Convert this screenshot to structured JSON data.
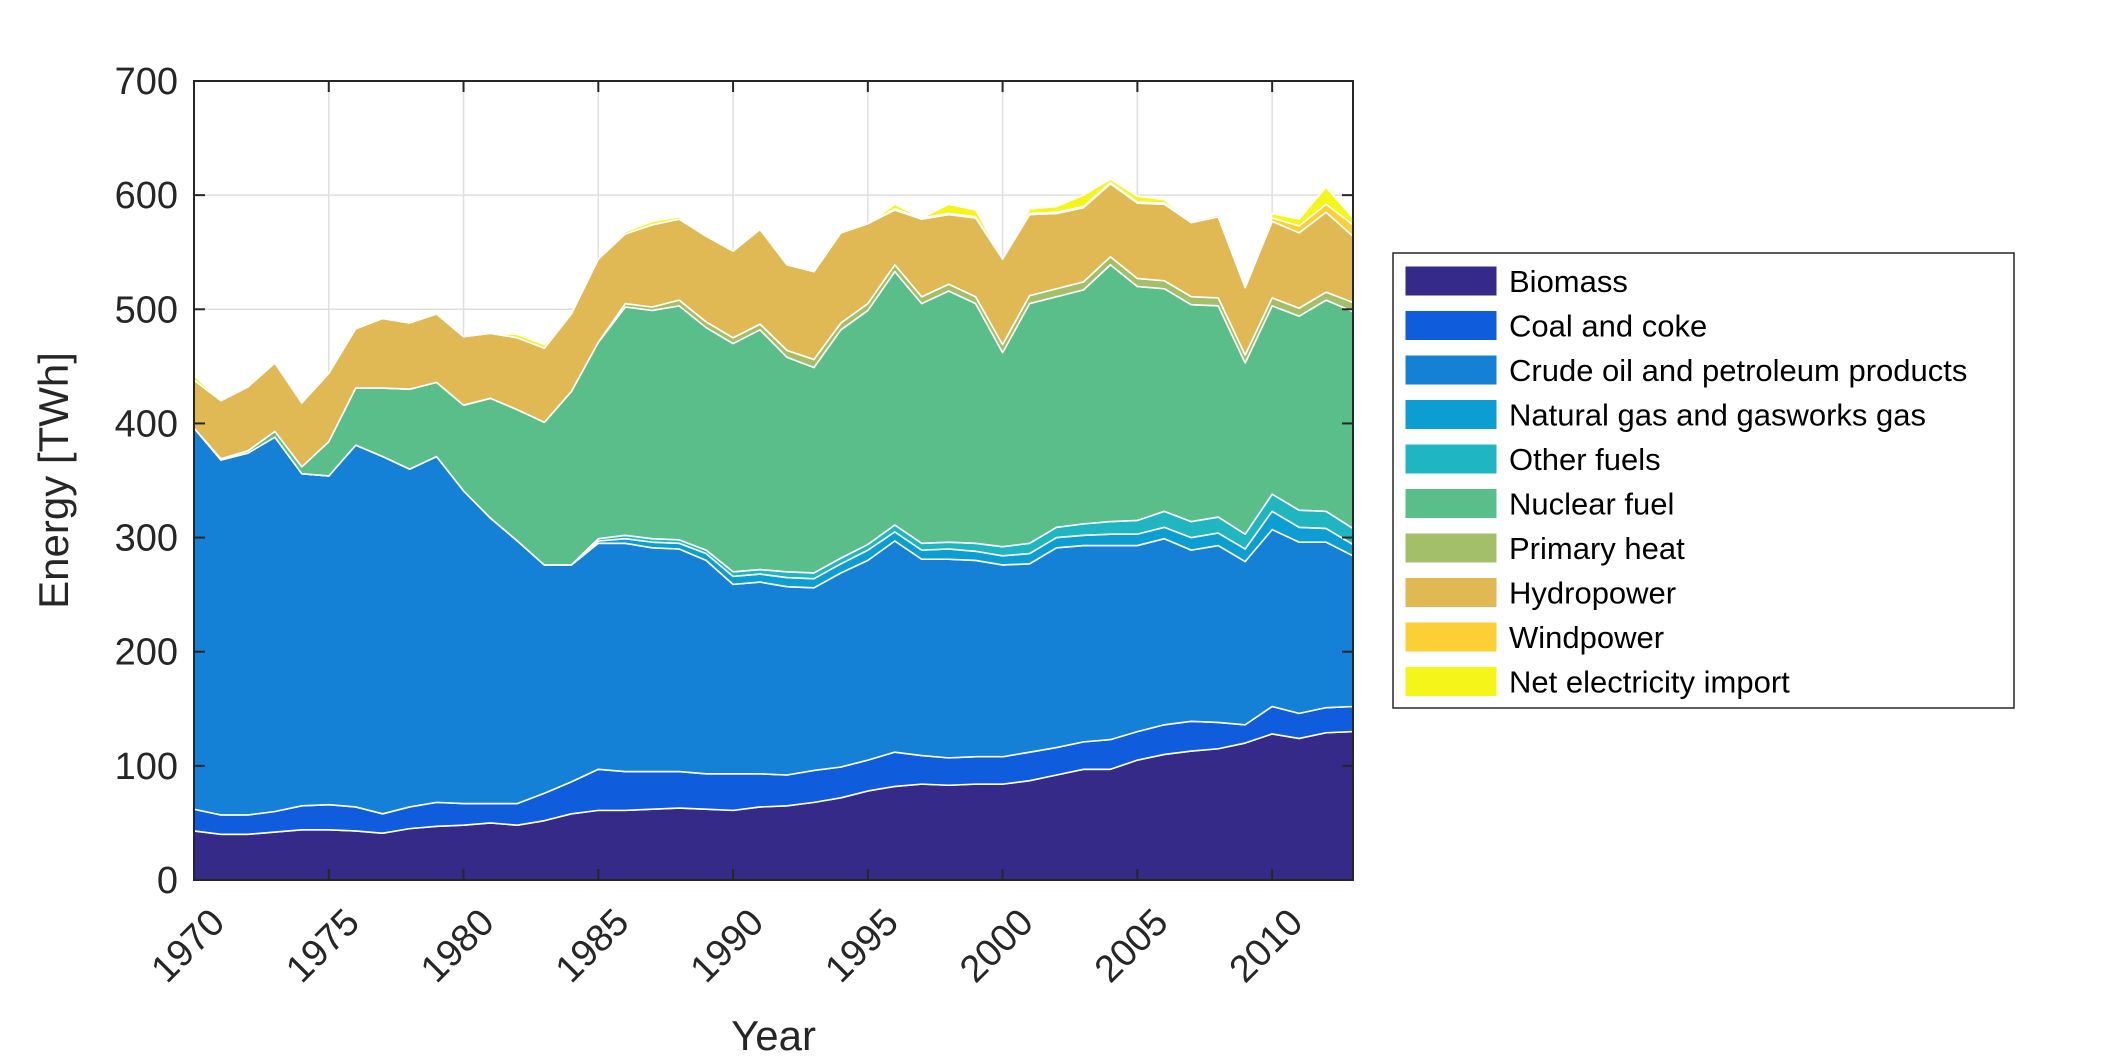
{
  "chart_data": {
    "type": "area",
    "stacked": true,
    "xlabel": "Year",
    "ylabel": "Energy [TWh]",
    "xlim": [
      1970,
      2013
    ],
    "ylim": [
      0,
      700
    ],
    "xticks": [
      1970,
      1975,
      1980,
      1985,
      1990,
      1995,
      2000,
      2005,
      2010
    ],
    "yticks": [
      0,
      100,
      200,
      300,
      400,
      500,
      600,
      700
    ],
    "grid": true,
    "legend_position": "right",
    "x": [
      1970,
      1971,
      1972,
      1973,
      1974,
      1975,
      1976,
      1977,
      1978,
      1979,
      1980,
      1981,
      1982,
      1983,
      1984,
      1985,
      1986,
      1987,
      1988,
      1989,
      1990,
      1991,
      1992,
      1993,
      1994,
      1995,
      1996,
      1997,
      1998,
      1999,
      2000,
      2001,
      2002,
      2003,
      2004,
      2005,
      2006,
      2007,
      2008,
      2009,
      2010,
      2011,
      2012,
      2013
    ],
    "series": [
      {
        "name": "Biomass",
        "color": "#352a87",
        "values": [
          43,
          40,
          40,
          42,
          44,
          44,
          43,
          41,
          45,
          47,
          48,
          50,
          48,
          52,
          58,
          61,
          61,
          62,
          63,
          62,
          61,
          64,
          65,
          68,
          72,
          78,
          82,
          84,
          83,
          84,
          84,
          87,
          92,
          97,
          97,
          105,
          110,
          113,
          115,
          120,
          128,
          124,
          129,
          130
        ]
      },
      {
        "name": "Coal and coke",
        "color": "#0f5cdd",
        "values": [
          19,
          17,
          17,
          18,
          21,
          22,
          21,
          17,
          19,
          21,
          19,
          17,
          19,
          24,
          28,
          36,
          34,
          33,
          32,
          31,
          32,
          29,
          27,
          28,
          27,
          27,
          30,
          25,
          24,
          24,
          24,
          25,
          24,
          24,
          26,
          25,
          26,
          26,
          23,
          16,
          24,
          22,
          22,
          22
        ]
      },
      {
        "name": "Crude oil and petroleum products",
        "color": "#1481d6",
        "values": [
          334,
          311,
          317,
          328,
          291,
          288,
          317,
          313,
          296,
          303,
          274,
          250,
          230,
          200,
          190,
          198,
          200,
          196,
          195,
          187,
          166,
          168,
          165,
          160,
          170,
          175,
          185,
          172,
          174,
          172,
          168,
          165,
          175,
          172,
          170,
          163,
          163,
          150,
          155,
          143,
          155,
          150,
          145,
          132
        ]
      },
      {
        "name": "Natural gas and gasworks gas",
        "color": "#0c9ed3",
        "values": [
          0,
          0,
          0,
          0,
          0,
          0,
          0,
          0,
          0,
          0,
          0,
          0,
          0,
          0,
          0,
          2,
          4,
          5,
          5,
          6,
          7,
          7,
          8,
          8,
          8,
          9,
          8,
          8,
          9,
          8,
          8,
          9,
          9,
          9,
          10,
          10,
          10,
          11,
          11,
          11,
          16,
          13,
          12,
          10
        ]
      },
      {
        "name": "Other fuels",
        "color": "#1fb5c1",
        "values": [
          0,
          0,
          0,
          0,
          0,
          0,
          0,
          0,
          0,
          0,
          0,
          0,
          0,
          0,
          0,
          2,
          3,
          3,
          3,
          3,
          4,
          4,
          5,
          5,
          5,
          5,
          6,
          6,
          6,
          7,
          8,
          9,
          9,
          10,
          11,
          12,
          14,
          14,
          14,
          13,
          15,
          15,
          15,
          14
        ]
      },
      {
        "name": "Nuclear fuel",
        "color": "#5abe8a",
        "values": [
          0,
          1,
          2,
          5,
          6,
          30,
          50,
          60,
          70,
          65,
          75,
          105,
          115,
          125,
          152,
          172,
          200,
          200,
          205,
          195,
          200,
          210,
          188,
          180,
          200,
          205,
          222,
          210,
          220,
          210,
          170,
          210,
          202,
          205,
          225,
          205,
          195,
          190,
          185,
          150,
          165,
          170,
          185,
          190
        ]
      },
      {
        "name": "Primary heat",
        "color": "#a4bf69",
        "values": [
          0,
          0,
          0,
          0,
          0,
          0,
          0,
          0,
          0,
          0,
          0,
          0,
          0,
          0,
          0,
          0,
          3,
          3,
          5,
          5,
          5,
          5,
          6,
          7,
          6,
          6,
          6,
          6,
          6,
          6,
          7,
          7,
          7,
          7,
          7,
          7,
          7,
          7,
          7,
          7,
          7,
          7,
          7,
          8
        ]
      },
      {
        "name": "Hydropower",
        "color": "#e0b854",
        "values": [
          42,
          51,
          56,
          60,
          56,
          60,
          52,
          61,
          58,
          60,
          60,
          57,
          63,
          65,
          68,
          73,
          61,
          72,
          71,
          75,
          76,
          83,
          75,
          77,
          79,
          70,
          48,
          68,
          61,
          69,
          75,
          71,
          66,
          65,
          64,
          66,
          67,
          65,
          71,
          59,
          67,
          66,
          70,
          58
        ]
      },
      {
        "name": "Windpower",
        "color": "#fccf36",
        "values": [
          0,
          0,
          0,
          0,
          0,
          0,
          0,
          0,
          0,
          0,
          0,
          0,
          0,
          0,
          0,
          0,
          0,
          0,
          0,
          0,
          0,
          0,
          0,
          0,
          0,
          0,
          1,
          1,
          1,
          1,
          1,
          1,
          1,
          1,
          1,
          1,
          1,
          1,
          2,
          2,
          3,
          6,
          7,
          10
        ]
      },
      {
        "name": "Net electricity import",
        "color": "#f5f51a",
        "values": [
          4,
          0,
          0,
          0,
          0,
          0,
          0,
          0,
          0,
          0,
          0,
          0,
          3,
          3,
          0,
          0,
          2,
          3,
          2,
          0,
          0,
          0,
          0,
          0,
          0,
          0,
          4,
          0,
          8,
          6,
          0,
          4,
          5,
          10,
          3,
          5,
          3,
          0,
          0,
          0,
          4,
          6,
          15,
          6
        ]
      }
    ]
  }
}
